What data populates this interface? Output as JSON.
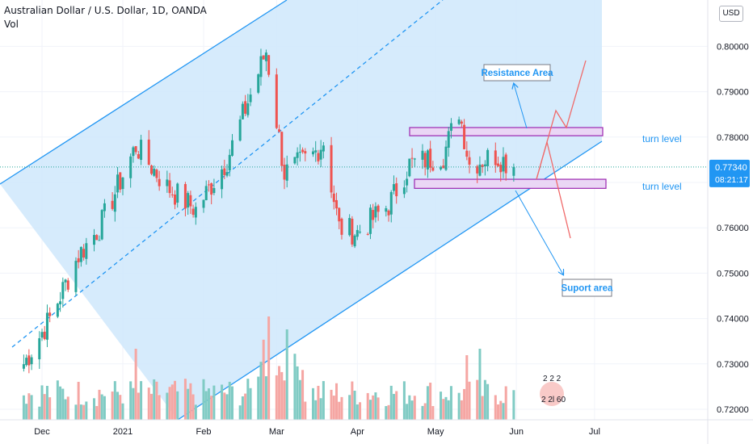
{
  "header": {
    "title": "Australian Dollar / U.S. Dollar, 1D, OANDA",
    "volume_label": "Vol"
  },
  "currency_button": "USD",
  "price_badge": {
    "price": "0.77340",
    "countdown": "08:21:17"
  },
  "colors": {
    "up": "#26a69a",
    "down": "#ef5350",
    "up_vol": "#80cbc4",
    "down_vol": "#f5a6a3",
    "channel_fill": "#cfe7fb",
    "channel_line": "#2196f3",
    "box_fill": "#ead6f5",
    "box_border": "#9c27b0",
    "arrow": "#f06a6a",
    "annotation_arrow": "#2196f3",
    "badge_bg": "#2196f3"
  },
  "annotations": {
    "resistance_area": "Resistance Area",
    "support_area": "Suport area",
    "turn_level_upper": "turn level",
    "turn_level_lower": "turn level",
    "volume_badge_top": "2 2 2",
    "volume_badge_bottom": "2 2l 60"
  },
  "chart_data": {
    "type": "candlestick",
    "title": "Australian Dollar / U.S. Dollar, 1D, OANDA",
    "x_ticks": [
      "Dec",
      "2021",
      "Feb",
      "Mar",
      "Apr",
      "May",
      "Jun",
      "Jul"
    ],
    "y_ticks": [
      "0.72000",
      "0.73000",
      "0.74000",
      "0.75000",
      "0.76000",
      "0.77000",
      "0.78000",
      "0.79000",
      "0.80000"
    ],
    "ylim": [
      0.7185,
      0.8065
    ],
    "last_price": 0.7734,
    "resistance_zone": [
      0.7803,
      0.7821
    ],
    "support_zone": [
      0.7687,
      0.7707
    ],
    "waypoints": [
      {
        "date": "2020-11-24",
        "price": 0.73
      },
      {
        "date": "2020-12-04",
        "price": 0.74
      },
      {
        "date": "2020-12-15",
        "price": 0.754
      },
      {
        "date": "2020-12-23",
        "price": 0.76
      },
      {
        "date": "2021-01-06",
        "price": 0.778
      },
      {
        "date": "2021-01-18",
        "price": 0.769
      },
      {
        "date": "2021-01-29",
        "price": 0.764
      },
      {
        "date": "2021-02-10",
        "price": 0.775
      },
      {
        "date": "2021-02-25",
        "price": 0.799
      },
      {
        "date": "2021-03-04",
        "price": 0.772
      },
      {
        "date": "2021-03-15",
        "price": 0.776
      },
      {
        "date": "2021-03-19",
        "price": 0.779
      },
      {
        "date": "2021-03-25",
        "price": 0.76
      },
      {
        "date": "2021-04-01",
        "price": 0.759
      },
      {
        "date": "2021-04-13",
        "price": 0.765
      },
      {
        "date": "2021-04-21",
        "price": 0.774
      },
      {
        "date": "2021-05-04",
        "price": 0.776
      },
      {
        "date": "2021-05-10",
        "price": 0.786
      },
      {
        "date": "2021-05-14",
        "price": 0.774
      },
      {
        "date": "2021-05-24",
        "price": 0.776
      },
      {
        "date": "2021-05-31",
        "price": 0.7734
      }
    ],
    "volume": {
      "ylim": [
        0,
        100
      ],
      "spikes": [
        {
          "date": "2021-01-06",
          "value": 55
        },
        {
          "date": "2021-02-24",
          "value": 62
        },
        {
          "date": "2021-02-26",
          "value": 80
        },
        {
          "date": "2021-03-05",
          "value": 70
        },
        {
          "date": "2021-05-13",
          "value": 50
        },
        {
          "date": "2021-05-18",
          "value": 55
        }
      ]
    }
  }
}
